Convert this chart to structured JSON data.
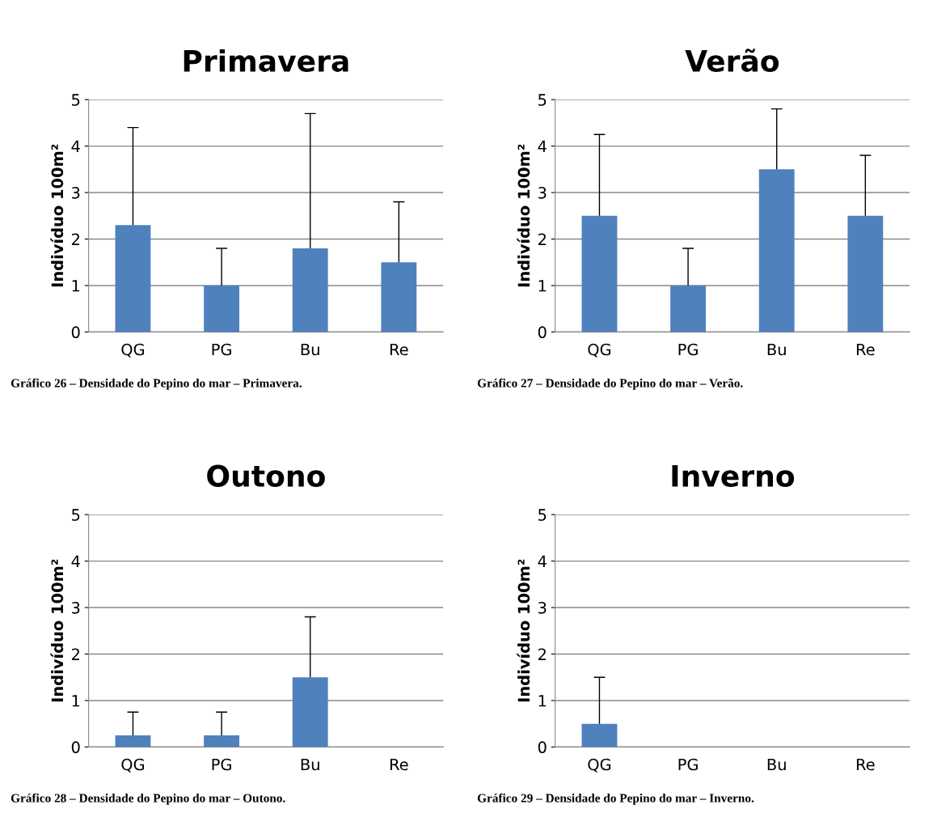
{
  "chart_data": [
    {
      "type": "bar",
      "title": "Primavera",
      "ylabel": "Indivíduo 100m²",
      "categories": [
        "QG",
        "PG",
        "Bu",
        "Re"
      ],
      "values": [
        2.3,
        1.0,
        1.8,
        1.5
      ],
      "errors": [
        [
          2.3,
          4.4
        ],
        [
          1.0,
          1.8
        ],
        [
          1.8,
          4.7
        ],
        [
          1.5,
          2.8
        ]
      ],
      "color": "#4f81bd",
      "ylim": [
        0,
        5
      ],
      "yticks": [
        0,
        1,
        2,
        3,
        4,
        5
      ],
      "grid": "y",
      "annotations": [
        "Gráfico 26 – Densidade do Pepino do mar – Primavera."
      ]
    },
    {
      "type": "bar",
      "title": "Verão",
      "ylabel": "Indivíduo 100m²",
      "categories": [
        "QG",
        "PG",
        "Bu",
        "Re"
      ],
      "values": [
        2.5,
        1.0,
        3.5,
        2.5
      ],
      "errors": [
        [
          2.5,
          4.25
        ],
        [
          1.0,
          1.8
        ],
        [
          3.5,
          4.8
        ],
        [
          2.5,
          3.8
        ]
      ],
      "color": "#4f81bd",
      "ylim": [
        0,
        5
      ],
      "yticks": [
        0,
        1,
        2,
        3,
        4,
        5
      ],
      "grid": "y",
      "annotations": [
        "Gráfico 27 – Densidade do Pepino do mar – Verão."
      ]
    },
    {
      "type": "bar",
      "title": "Outono",
      "ylabel": "Indivíduo 100m²",
      "categories": [
        "QG",
        "PG",
        "Bu",
        "Re"
      ],
      "values": [
        0.25,
        0.25,
        1.5,
        0
      ],
      "errors": [
        [
          0.25,
          0.75
        ],
        [
          0.25,
          0.75
        ],
        [
          1.5,
          2.8
        ],
        null
      ],
      "color": "#4f81bd",
      "ylim": [
        0,
        5
      ],
      "yticks": [
        0,
        1,
        2,
        3,
        4,
        5
      ],
      "grid": "y",
      "annotations": [
        "Gráfico 28 – Densidade do Pepino do mar – Outono."
      ]
    },
    {
      "type": "bar",
      "title": "Inverno",
      "ylabel": "Indivíduo 100m²",
      "categories": [
        "QG",
        "PG",
        "Bu",
        "Re"
      ],
      "values": [
        0.5,
        0,
        0,
        0
      ],
      "errors": [
        [
          0.5,
          1.5
        ],
        null,
        null,
        null
      ],
      "color": "#4f81bd",
      "ylim": [
        0,
        5
      ],
      "yticks": [
        0,
        1,
        2,
        3,
        4,
        5
      ],
      "grid": "y",
      "annotations": [
        "Gráfico 29 – Densidade do Pepino do mar – Inverno."
      ]
    }
  ]
}
